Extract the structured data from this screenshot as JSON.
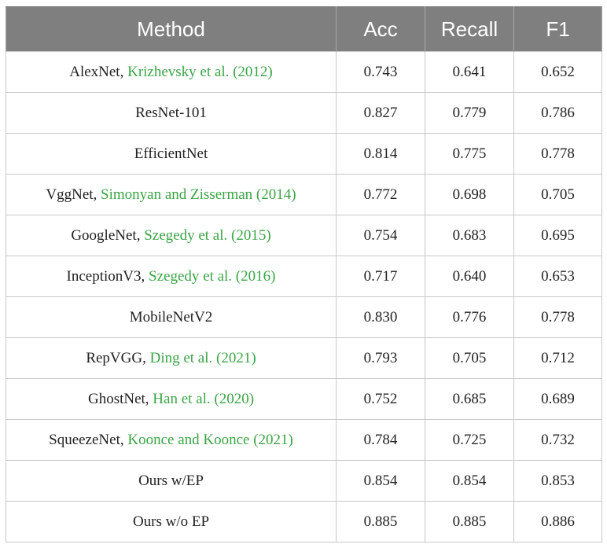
{
  "header": {
    "method": "Method",
    "acc": "Acc",
    "recall": "Recall",
    "f1": "F1"
  },
  "rows": [
    {
      "method": "AlexNet, ",
      "cite": "Krizhevsky et al. (2012)",
      "acc": "0.743",
      "recall": "0.641",
      "f1": "0.652"
    },
    {
      "method": "ResNet-101",
      "cite": "",
      "acc": "0.827",
      "recall": "0.779",
      "f1": "0.786"
    },
    {
      "method": "EfficientNet",
      "cite": "",
      "acc": "0.814",
      "recall": "0.775",
      "f1": "0.778"
    },
    {
      "method": "VggNet, ",
      "cite": "Simonyan and Zisserman (2014)",
      "acc": "0.772",
      "recall": "0.698",
      "f1": "0.705"
    },
    {
      "method": "GoogleNet, ",
      "cite": "Szegedy et al. (2015)",
      "acc": "0.754",
      "recall": "0.683",
      "f1": "0.695"
    },
    {
      "method": "InceptionV3, ",
      "cite": "Szegedy et al. (2016)",
      "acc": "0.717",
      "recall": "0.640",
      "f1": "0.653"
    },
    {
      "method": "MobileNetV2",
      "cite": "",
      "acc": "0.830",
      "recall": "0.776",
      "f1": "0.778"
    },
    {
      "method": "RepVGG, ",
      "cite": "Ding et al. (2021)",
      "acc": "0.793",
      "recall": "0.705",
      "f1": "0.712"
    },
    {
      "method": "GhostNet, ",
      "cite": "Han et al. (2020)",
      "acc": "0.752",
      "recall": "0.685",
      "f1": "0.689"
    },
    {
      "method": "SqueezeNet, ",
      "cite": "Koonce and Koonce (2021)",
      "acc": "0.784",
      "recall": "0.725",
      "f1": "0.732"
    },
    {
      "method": "Ours w/EP",
      "cite": "",
      "acc": "0.854",
      "recall": "0.854",
      "f1": "0.853"
    },
    {
      "method": "Ours w/o EP",
      "cite": "",
      "acc": "0.885",
      "recall": "0.885",
      "f1": "0.886"
    }
  ],
  "colors": {
    "header_bg": "#7f7f7f",
    "header_text": "#ffffff",
    "citation": "#3aa545",
    "border": "#c8c8c8"
  }
}
